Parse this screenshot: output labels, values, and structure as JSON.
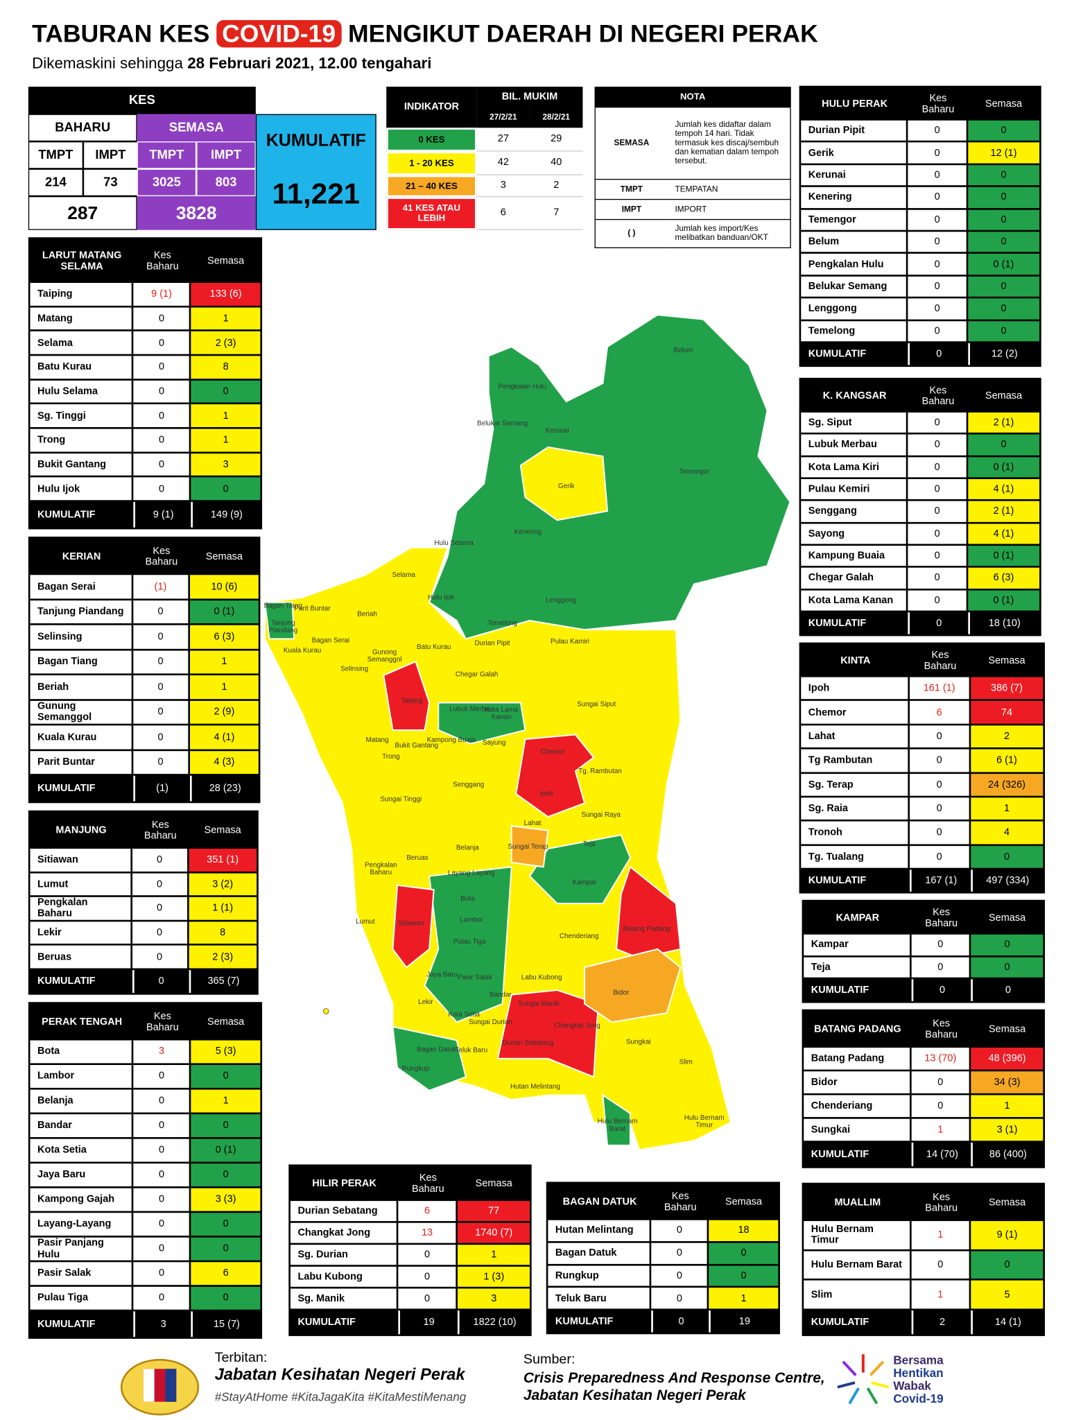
{
  "header": {
    "title_before": "TABURAN KES",
    "title_highlight": "COVID-19",
    "title_after": "MENGIKUT DAERAH DI NEGERI PERAK",
    "subtitle": "Dikemaskini sehingga",
    "subtitle_date": "28 Februari 2021, 12.00 tengahari"
  },
  "levels": {
    "green": "#21a24a",
    "yellow": "#fff200",
    "orange": "#f7a823",
    "red": "#ed1c24"
  },
  "summary": {
    "kes": "KES",
    "baharu": "BAHARU",
    "semasa": "SEMASA",
    "kumulatif": "KUMULATIF",
    "baharu_tmpt_label": "TMPT",
    "baharu_impt_label": "IMPT",
    "semasa_tmpt_label": "TMPT",
    "semasa_impt_label": "IMPT",
    "baharu_tmpt": "214",
    "baharu_impt": "73",
    "semasa_tmpt": "3025",
    "semasa_impt": "803",
    "baharu_total": "287",
    "semasa_total": "3828",
    "kumulatif_total": "11,221"
  },
  "indikator": {
    "header": "INDIKATOR",
    "bil_mukim": "BIL. MUKIM",
    "dates": [
      "27/2/21",
      "28/2/21"
    ],
    "rows": [
      {
        "label": "0 KES",
        "level": "green",
        "values": [
          "27",
          "29"
        ]
      },
      {
        "label": "1 - 20 KES",
        "level": "yellow",
        "values": [
          "42",
          "40"
        ]
      },
      {
        "label": "21 – 40 KES",
        "level": "orange",
        "values": [
          "3",
          "2"
        ]
      },
      {
        "label": "41 KES ATAU LEBIH",
        "level": "red",
        "values": [
          "6",
          "7"
        ]
      }
    ]
  },
  "nota": {
    "title": "NOTA",
    "rows": [
      [
        "SEMASA",
        "Jumlah kes didaftar dalam tempoh 14 hari. Tidak termasuk kes discaj/sembuh dan kematian dalam tempoh tersebut."
      ],
      [
        "TMPT",
        "TEMPATAN"
      ],
      [
        "IMPT",
        "IMPORT"
      ],
      [
        "( )",
        "Jumlah kes import/Kes melibatkan banduan/OKT"
      ]
    ]
  },
  "districts": [
    {
      "name": "LARUT MATANG SELAMA",
      "columns": [
        "Kes Baharu",
        "Semasa"
      ],
      "rows": [
        {
          "name": "Taiping",
          "baharu": "9 (1)",
          "semasa": "133 (6)",
          "level": "red"
        },
        {
          "name": "Matang",
          "baharu": "0",
          "semasa": "1",
          "level": "yellow"
        },
        {
          "name": "Selama",
          "baharu": "0",
          "semasa": "2 (3)",
          "level": "yellow"
        },
        {
          "name": "Batu Kurau",
          "baharu": "0",
          "semasa": "8",
          "level": "yellow"
        },
        {
          "name": "Hulu Selama",
          "baharu": "0",
          "semasa": "0",
          "level": "green"
        },
        {
          "name": "Sg. Tinggi",
          "baharu": "0",
          "semasa": "1",
          "level": "yellow"
        },
        {
          "name": "Trong",
          "baharu": "0",
          "semasa": "1",
          "level": "yellow"
        },
        {
          "name": "Bukit Gantang",
          "baharu": "0",
          "semasa": "3",
          "level": "yellow"
        },
        {
          "name": "Hulu Ijok",
          "baharu": "0",
          "semasa": "0",
          "level": "green"
        }
      ],
      "total": {
        "label": "KUMULATIF",
        "baharu": "9 (1)",
        "semasa": "149 (9)"
      }
    },
    {
      "name": "KERIAN",
      "columns": [
        "Kes Baharu",
        "Semasa"
      ],
      "rows": [
        {
          "name": "Bagan Serai",
          "baharu": "(1)",
          "semasa": "10 (6)",
          "level": "yellow"
        },
        {
          "name": "Tanjung Piandang",
          "baharu": "0",
          "semasa": "0 (1)",
          "level": "green"
        },
        {
          "name": "Selinsing",
          "baharu": "0",
          "semasa": "6 (3)",
          "level": "yellow"
        },
        {
          "name": "Bagan Tiang",
          "baharu": "0",
          "semasa": "1",
          "level": "yellow"
        },
        {
          "name": "Beriah",
          "baharu": "0",
          "semasa": "1",
          "level": "yellow"
        },
        {
          "name": "Gunung Semanggol",
          "baharu": "0",
          "semasa": "2 (9)",
          "level": "yellow"
        },
        {
          "name": "Kuala Kurau",
          "baharu": "0",
          "semasa": "4 (1)",
          "level": "yellow"
        },
        {
          "name": "Parit Buntar",
          "baharu": "0",
          "semasa": "4 (3)",
          "level": "yellow"
        }
      ],
      "total": {
        "label": "KUMULATIF",
        "baharu": "(1)",
        "semasa": "28 (23)"
      }
    },
    {
      "name": "MANJUNG",
      "columns": [
        "Kes Baharu",
        "Semasa"
      ],
      "rows": [
        {
          "name": "Sitiawan",
          "baharu": "0",
          "semasa": "351 (1)",
          "level": "red"
        },
        {
          "name": "Lumut",
          "baharu": "0",
          "semasa": "3 (2)",
          "level": "yellow"
        },
        {
          "name": "Pengkalan Baharu",
          "baharu": "0",
          "semasa": "1 (1)",
          "level": "yellow"
        },
        {
          "name": "Lekir",
          "baharu": "0",
          "semasa": "8",
          "level": "yellow"
        },
        {
          "name": "Beruas",
          "baharu": "0",
          "semasa": "2 (3)",
          "level": "yellow"
        }
      ],
      "total": {
        "label": "KUMULATIF",
        "baharu": "0",
        "semasa": "365 (7)"
      }
    },
    {
      "name": "PERAK TENGAH",
      "columns": [
        "Kes Baharu",
        "Semasa"
      ],
      "rows": [
        {
          "name": "Bota",
          "baharu": "3",
          "semasa": "5 (3)",
          "level": "yellow"
        },
        {
          "name": "Lambor",
          "baharu": "0",
          "semasa": "0",
          "level": "green"
        },
        {
          "name": "Belanja",
          "baharu": "0",
          "semasa": "1",
          "level": "yellow"
        },
        {
          "name": "Bandar",
          "baharu": "0",
          "semasa": "0",
          "level": "green"
        },
        {
          "name": "Kota Setia",
          "baharu": "0",
          "semasa": "0 (1)",
          "level": "green"
        },
        {
          "name": "Jaya Baru",
          "baharu": "0",
          "semasa": "0",
          "level": "green"
        },
        {
          "name": "Kampong Gajah",
          "baharu": "0",
          "semasa": "3 (3)",
          "level": "yellow"
        },
        {
          "name": "Layang-Layang",
          "baharu": "0",
          "semasa": "0",
          "level": "green"
        },
        {
          "name": "Pasir Panjang Hulu",
          "baharu": "0",
          "semasa": "0",
          "level": "green"
        },
        {
          "name": "Pasir Salak",
          "baharu": "0",
          "semasa": "6",
          "level": "yellow"
        },
        {
          "name": "Pulau Tiga",
          "baharu": "0",
          "semasa": "0",
          "level": "green"
        }
      ],
      "total": {
        "label": "KUMULATIF",
        "baharu": "3",
        "semasa": "15 (7)"
      }
    },
    {
      "name": "HULU PERAK",
      "columns": [
        "Kes Baharu",
        "Semasa"
      ],
      "rows": [
        {
          "name": "Durian Pipit",
          "baharu": "0",
          "semasa": "0",
          "level": "green"
        },
        {
          "name": "Gerik",
          "baharu": "0",
          "semasa": "12 (1)",
          "level": "yellow"
        },
        {
          "name": "Kerunai",
          "baharu": "0",
          "semasa": "0",
          "level": "green"
        },
        {
          "name": "Kenering",
          "baharu": "0",
          "semasa": "0",
          "level": "green"
        },
        {
          "name": "Temengor",
          "baharu": "0",
          "semasa": "0",
          "level": "green"
        },
        {
          "name": "Belum",
          "baharu": "0",
          "semasa": "0",
          "level": "green"
        },
        {
          "name": "Pengkalan Hulu",
          "baharu": "0",
          "semasa": "0 (1)",
          "level": "green"
        },
        {
          "name": "Belukar Semang",
          "baharu": "0",
          "semasa": "0",
          "level": "green"
        },
        {
          "name": "Lenggong",
          "baharu": "0",
          "semasa": "0",
          "level": "green"
        },
        {
          "name": "Temelong",
          "baharu": "0",
          "semasa": "0",
          "level": "green"
        }
      ],
      "total": {
        "label": "KUMULATIF",
        "baharu": "0",
        "semasa": "12 (2)"
      }
    },
    {
      "name": "K. KANGSAR",
      "columns": [
        "Kes Baharu",
        "Semasa"
      ],
      "rows": [
        {
          "name": "Sg. Siput",
          "baharu": "0",
          "semasa": "2 (1)",
          "level": "yellow"
        },
        {
          "name": "Lubuk Merbau",
          "baharu": "0",
          "semasa": "0",
          "level": "green"
        },
        {
          "name": "Kota Lama Kiri",
          "baharu": "0",
          "semasa": "0 (1)",
          "level": "green"
        },
        {
          "name": "Pulau Kemiri",
          "baharu": "0",
          "semasa": "4 (1)",
          "level": "yellow"
        },
        {
          "name": "Senggang",
          "baharu": "0",
          "semasa": "2 (1)",
          "level": "yellow"
        },
        {
          "name": "Sayong",
          "baharu": "0",
          "semasa": "4 (1)",
          "level": "yellow"
        },
        {
          "name": "Kampung Buaia",
          "baharu": "0",
          "semasa": "0 (1)",
          "level": "green"
        },
        {
          "name": "Chegar Galah",
          "baharu": "0",
          "semasa": "6 (3)",
          "level": "yellow"
        },
        {
          "name": "Kota Lama Kanan",
          "baharu": "0",
          "semasa": "0 (1)",
          "level": "green"
        }
      ],
      "total": {
        "label": "KUMULATIF",
        "baharu": "0",
        "semasa": "18 (10)"
      }
    },
    {
      "name": "KINTA",
      "columns": [
        "Kes Baharu",
        "Semasa"
      ],
      "rows": [
        {
          "name": "Ipoh",
          "baharu": "161 (1)",
          "semasa": "386 (7)",
          "level": "red"
        },
        {
          "name": "Chemor",
          "baharu": "6",
          "semasa": "74",
          "level": "red"
        },
        {
          "name": "Lahat",
          "baharu": "0",
          "semasa": "2",
          "level": "yellow"
        },
        {
          "name": "Tg Rambutan",
          "baharu": "0",
          "semasa": "6 (1)",
          "level": "yellow"
        },
        {
          "name": "Sg. Terap",
          "baharu": "0",
          "semasa": "24 (326)",
          "level": "orange"
        },
        {
          "name": "Sg. Raia",
          "baharu": "0",
          "semasa": "1",
          "level": "yellow"
        },
        {
          "name": "Tronoh",
          "baharu": "0",
          "semasa": "4",
          "level": "yellow"
        },
        {
          "name": "Tg. Tualang",
          "baharu": "0",
          "semasa": "0",
          "level": "green"
        }
      ],
      "total": {
        "label": "KUMULATIF",
        "baharu": "167 (1)",
        "semasa": "497 (334)"
      }
    },
    {
      "name": "KAMPAR",
      "columns": [
        "Kes Baharu",
        "Semasa"
      ],
      "rows": [
        {
          "name": "Kampar",
          "baharu": "0",
          "semasa": "0",
          "level": "green"
        },
        {
          "name": "Teja",
          "baharu": "0",
          "semasa": "0",
          "level": "green"
        }
      ],
      "total": {
        "label": "KUMULATIF",
        "baharu": "0",
        "semasa": "0"
      }
    },
    {
      "name": "BATANG PADANG",
      "columns": [
        "Kes Baharu",
        "Semasa"
      ],
      "rows": [
        {
          "name": "Batang Padang",
          "baharu": "13 (70)",
          "semasa": "48 (396)",
          "level": "red"
        },
        {
          "name": "Bidor",
          "baharu": "0",
          "semasa": "34 (3)",
          "level": "orange"
        },
        {
          "name": "Chenderiang",
          "baharu": "0",
          "semasa": "1",
          "level": "yellow"
        },
        {
          "name": "Sungkai",
          "baharu": "1",
          "semasa": "3 (1)",
          "level": "yellow"
        }
      ],
      "total": {
        "label": "KUMULATIF",
        "baharu": "14 (70)",
        "semasa": "86 (400)"
      }
    },
    {
      "name": "MUALLIM",
      "columns": [
        "Kes Baharu",
        "Semasa"
      ],
      "rows": [
        {
          "name": "Hulu Bernam Timur",
          "baharu": "1",
          "semasa": "9 (1)",
          "level": "yellow"
        },
        {
          "name": "Hulu Bernam Barat",
          "baharu": "0",
          "semasa": "0",
          "level": "green"
        },
        {
          "name": "Slim",
          "baharu": "1",
          "semasa": "5",
          "level": "yellow"
        }
      ],
      "total": {
        "label": "KUMULATIF",
        "baharu": "2",
        "semasa": "14 (1)"
      }
    },
    {
      "name": "HILIR PERAK",
      "columns": [
        "Kes Baharu",
        "Semasa"
      ],
      "rows": [
        {
          "name": "Durian Sebatang",
          "baharu": "6",
          "semasa": "77",
          "level": "red"
        },
        {
          "name": "Changkat Jong",
          "baharu": "13",
          "semasa": "1740 (7)",
          "level": "red"
        },
        {
          "name": "Sg. Durian",
          "baharu": "0",
          "semasa": "1",
          "level": "yellow"
        },
        {
          "name": "Labu Kubong",
          "baharu": "0",
          "semasa": "1 (3)",
          "level": "yellow"
        },
        {
          "name": "Sg. Manik",
          "baharu": "0",
          "semasa": "3",
          "level": "yellow"
        }
      ],
      "total": {
        "label": "KUMULATIF",
        "baharu": "19",
        "semasa": "1822 (10)"
      }
    },
    {
      "name": "BAGAN DATUK",
      "columns": [
        "Kes Baharu",
        "Semasa"
      ],
      "rows": [
        {
          "name": "Hutan Melintang",
          "baharu": "0",
          "semasa": "18",
          "level": "yellow"
        },
        {
          "name": "Bagan Datuk",
          "baharu": "0",
          "semasa": "0",
          "level": "green"
        },
        {
          "name": "Rungkup",
          "baharu": "0",
          "semasa": "0",
          "level": "green"
        },
        {
          "name": "Teluk Baru",
          "baharu": "0",
          "semasa": "1",
          "level": "yellow"
        }
      ],
      "total": {
        "label": "KUMULATIF",
        "baharu": "0",
        "semasa": "19"
      }
    }
  ],
  "map": {
    "labels": [
      "Belum",
      "Pengkalan Hulu",
      "Belukar Semang",
      "Kerunai",
      "Temengor",
      "Gerik",
      "Kenering",
      "Hulu Selama",
      "Selama",
      "Hulu Ijok",
      "Lenggong",
      "Bagan Tiang",
      "Parit Buntar",
      "Tanjung Piandang",
      "Beriah",
      "Temelong",
      "Bagan Serai",
      "Gunong Semanggol",
      "Batu Kurau",
      "Kuala Kurau",
      "Durian Pipit",
      "Pulau Kamiri",
      "Selinsing",
      "Chegar Galah",
      "Taiping",
      "Sungai Siput",
      "Lubuk Merbau",
      "Kota Lama Kanan",
      "Matang",
      "Bukit Gantang",
      "Kampong Buaia",
      "Sayung",
      "Chemor",
      "Trong",
      "Tg. Rambutan",
      "Sungai Tinggi",
      "Senggang",
      "Ipoh",
      "Sungai Raya",
      "Lahat",
      "Sungai Terap",
      "Teja",
      "Belanja",
      "Beruas",
      "Pengkalan Baharu",
      "Layang Layang",
      "Kampar",
      "Bota",
      "Lumut",
      "Sitiawan",
      "Lambor",
      "Batang Padang",
      "Chenderiang",
      "Pulau Tiga",
      "Pasir Salak",
      "Labu Kubong",
      "Jaya Baru",
      "Bidor",
      "Lekir",
      "Bandar",
      "Sungai Manik",
      "Kota Setia",
      "Sungai Durian",
      "Changkat Jong",
      "Bagan Datuk",
      "Durian Sebatang",
      "Teluk Baru",
      "Sungkai",
      "Slim",
      "Rungkup",
      "Hutan Melintang",
      "Hulu Bernam Barat",
      "Hulu Bernam Timur"
    ]
  },
  "footer": {
    "publisher_label": "Terbitan:",
    "publisher": "Jabatan Kesihatan Negeri Perak",
    "hashtags": "#StayAtHome #KitaJagaKita #KitaMestiMenang",
    "source_label": "Sumber:",
    "source_1": "Crisis Preparedness And Response Centre,",
    "source_2": "Jabatan Kesihatan Negeri Perak",
    "campaign": [
      "Bersama",
      "Hentikan",
      "Wabak",
      "Covid-19"
    ]
  }
}
